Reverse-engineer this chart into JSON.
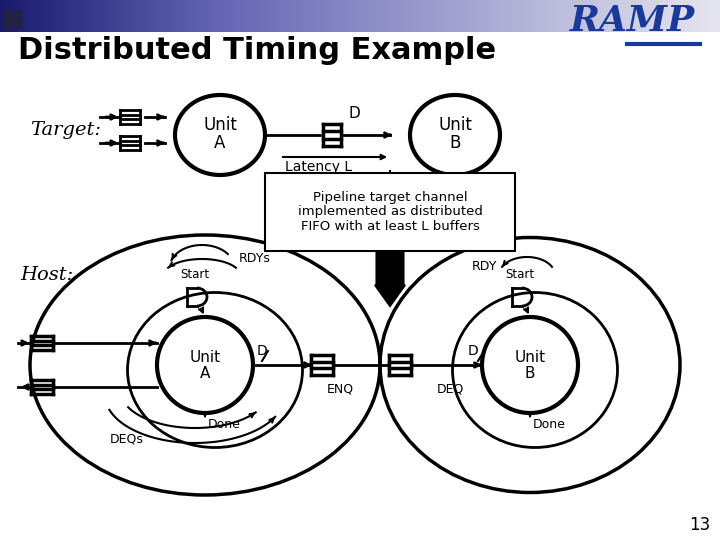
{
  "title": "Distributed Timing Example",
  "bg_color": "#ffffff",
  "title_color": "#000000",
  "title_fontsize": 22,
  "slide_number": "13",
  "ramp_text": "RAMP",
  "ramp_color": "#1a3a99",
  "target_label": "Target:",
  "host_label": "Host:",
  "unit_a_label": [
    "Unit",
    "A"
  ],
  "unit_b_label": [
    "Unit",
    "B"
  ],
  "latency_label": "Latency L",
  "rdys_label": "RDYs",
  "rdy_label": "RDY",
  "start_label": "Start",
  "done_label": "Done",
  "enq_label": "ENQ",
  "deq_label": "DEQ",
  "deqs_label": "DEQs",
  "d_label": "D",
  "pipeline_text": "Pipeline target channel\nimplemented as distributed\nFIFO with at least L buffers",
  "header_left_dark": "#1a1a6e",
  "header_right": "#c0c0d8"
}
